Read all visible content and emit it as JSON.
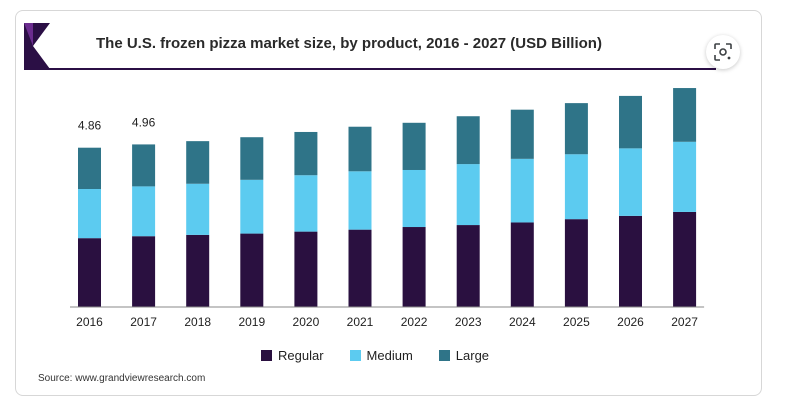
{
  "header": {
    "title": "The U.S. frozen pizza market size, by product, 2016 - 2027 (USD Billion)",
    "lens_icon": "visual-search-lens-icon"
  },
  "colors": {
    "regular": "#2a1040",
    "medium": "#5ccbf0",
    "large": "#2f7488",
    "brand": "#2b0f45"
  },
  "chart_data": {
    "type": "bar",
    "stacked": true,
    "title": "The U.S. frozen pizza market size, by product, 2016 - 2027 (USD Billion)",
    "categories": [
      "2016",
      "2017",
      "2018",
      "2019",
      "2020",
      "2021",
      "2022",
      "2023",
      "2024",
      "2025",
      "2026",
      "2027"
    ],
    "series": [
      {
        "name": "Regular",
        "values": [
          2.1,
          2.16,
          2.2,
          2.24,
          2.3,
          2.36,
          2.44,
          2.5,
          2.58,
          2.68,
          2.78,
          2.9
        ]
      },
      {
        "name": "Medium",
        "values": [
          1.5,
          1.52,
          1.56,
          1.64,
          1.72,
          1.78,
          1.74,
          1.86,
          1.94,
          1.98,
          2.06,
          2.14
        ]
      },
      {
        "name": "Large",
        "values": [
          1.26,
          1.28,
          1.3,
          1.3,
          1.32,
          1.36,
          1.44,
          1.46,
          1.5,
          1.56,
          1.6,
          1.64
        ]
      }
    ],
    "data_labels": [
      {
        "category": "2016",
        "text": "4.86"
      },
      {
        "category": "2017",
        "text": "4.96"
      }
    ],
    "ylim": [
      0,
      7.2
    ],
    "grid": false,
    "legend_position": "bottom"
  },
  "legend": {
    "items": [
      {
        "label": "Regular"
      },
      {
        "label": "Medium"
      },
      {
        "label": "Large"
      }
    ]
  },
  "footer": {
    "source": "Source: www.grandviewresearch.com"
  }
}
